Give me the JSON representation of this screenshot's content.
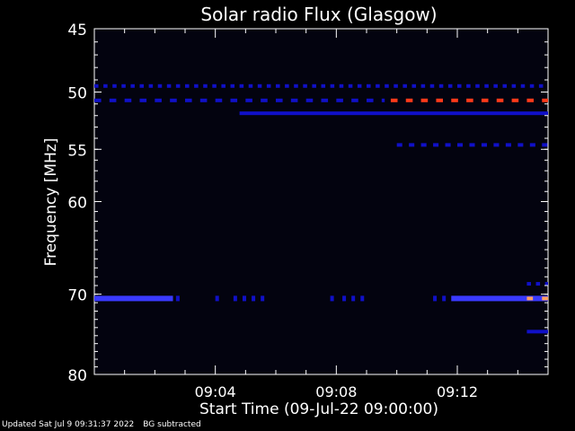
{
  "chart_data": {
    "type": "heatmap",
    "title": "Solar radio Flux (Glasgow)",
    "xlabel": "Start Time (09-Jul-22 09:00:00)",
    "ylabel": "Frequency [MHz]",
    "x_range_minutes": [
      0,
      15
    ],
    "x_ticks": [
      {
        "minute": 4,
        "label": "09:04"
      },
      {
        "minute": 8,
        "label": "09:08"
      },
      {
        "minute": 12,
        "label": "09:12"
      }
    ],
    "y_scale": "log",
    "y_range_mhz": [
      45,
      80
    ],
    "y_ticks": [
      {
        "mhz": 45,
        "label": "45"
      },
      {
        "mhz": 50,
        "label": "50"
      },
      {
        "mhz": 55,
        "label": "55"
      },
      {
        "mhz": 60,
        "label": "60"
      },
      {
        "mhz": 70,
        "label": "70"
      },
      {
        "mhz": 80,
        "label": "80"
      }
    ],
    "colors": {
      "background": "#03030f",
      "low": "#1010c8",
      "mid": "#3a3aff",
      "high": "#ff3a1a",
      "peak": "#ffa060"
    },
    "features": [
      {
        "name": "comb-49.5",
        "mhz": 49.5,
        "start_min": 0.0,
        "end_min": 15.0,
        "dash_min": 0.3,
        "level": "low"
      },
      {
        "name": "band-50.7-early",
        "mhz": 50.7,
        "start_min": 0.0,
        "end_min": 9.6,
        "dash_min": 0.5,
        "level": "low"
      },
      {
        "name": "band-50.7-late",
        "mhz": 50.7,
        "start_min": 9.8,
        "end_min": 15.0,
        "dash_min": 0.5,
        "level": "high"
      },
      {
        "name": "band-51.8",
        "mhz": 51.8,
        "start_min": 4.8,
        "end_min": 15.0,
        "dash_min": 0,
        "level": "low"
      },
      {
        "name": "band-54.6",
        "mhz": 54.6,
        "start_min": 10.0,
        "end_min": 15.0,
        "dash_min": 0.4,
        "level": "low"
      },
      {
        "name": "band-70.5-a",
        "mhz": 70.5,
        "start_min": 0.0,
        "end_min": 2.6,
        "dash_min": 0,
        "level": "mid"
      },
      {
        "name": "band-70.5-b",
        "mhz": 70.5,
        "start_min": 11.8,
        "end_min": 15.0,
        "dash_min": 0,
        "level": "mid"
      },
      {
        "name": "burst-70.5",
        "mhz": 70.5,
        "start_min": 14.3,
        "end_min": 14.5,
        "dash_min": 0,
        "level": "peak"
      },
      {
        "name": "burst-70.5-b",
        "mhz": 70.5,
        "start_min": 14.8,
        "end_min": 15.0,
        "dash_min": 0,
        "level": "peak"
      },
      {
        "name": "band-68.8",
        "mhz": 68.8,
        "start_min": 14.3,
        "end_min": 15.0,
        "dash_min": 0.3,
        "level": "low"
      },
      {
        "name": "band-74.5",
        "mhz": 74.5,
        "start_min": 14.3,
        "end_min": 15.0,
        "dash_min": 0,
        "level": "low"
      }
    ],
    "scattered_marks_70_5_min": [
      2.7,
      4.0,
      4.6,
      4.9,
      5.2,
      5.5,
      7.8,
      8.2,
      8.5,
      8.8,
      11.2,
      11.5
    ]
  },
  "footer": {
    "updated": "Updated Sat Jul  9 09:31:37 2022",
    "note": "BG subtracted"
  }
}
